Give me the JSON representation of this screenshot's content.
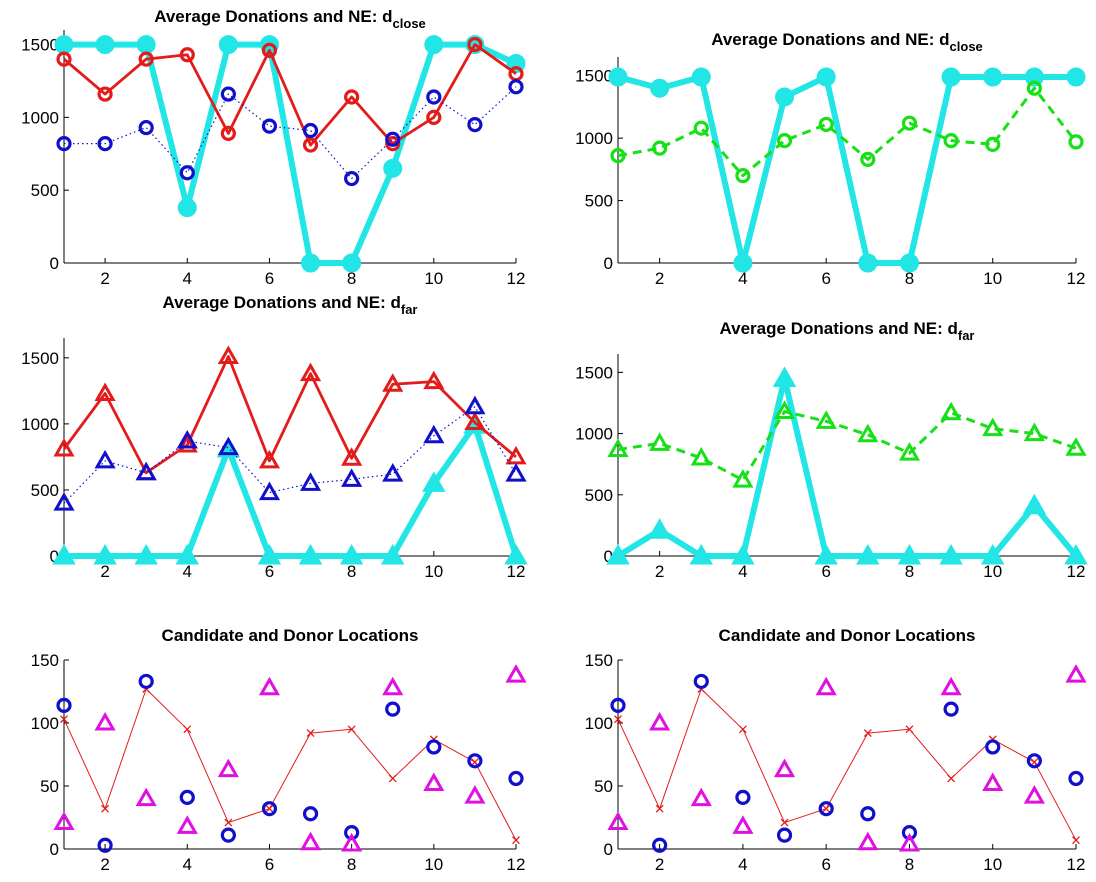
{
  "colors": {
    "cyan": "#22e5e5",
    "red": "#e41b1b",
    "blue": "#1010cc",
    "green": "#16e016",
    "magenta": "#e010e0"
  },
  "chart_data": [
    {
      "type": "line",
      "title": "Average Donations and NE: d",
      "title_subscript": "close",
      "x": [
        1,
        2,
        3,
        4,
        5,
        6,
        7,
        8,
        9,
        10,
        11,
        12
      ],
      "xticks": [
        2,
        4,
        6,
        8,
        10,
        12
      ],
      "yticks": [
        0,
        500,
        1000,
        1500
      ],
      "xlim": [
        1,
        12
      ],
      "ylim": [
        0,
        1600
      ],
      "series": [
        {
          "values": [
            1500,
            1500,
            1500,
            380,
            1500,
            1500,
            0,
            0,
            650,
            1500,
            1500,
            1370
          ],
          "color": "cyan",
          "marker": "o",
          "line": "solid-thick",
          "filled": true
        },
        {
          "values": [
            1400,
            1160,
            1400,
            1430,
            890,
            1460,
            810,
            1140,
            820,
            1000,
            1500,
            1300
          ],
          "color": "red",
          "marker": "o",
          "line": "solid"
        },
        {
          "values": [
            820,
            820,
            930,
            620,
            1160,
            940,
            910,
            580,
            850,
            1140,
            950,
            1210
          ],
          "color": "blue",
          "marker": "o",
          "line": "dotted"
        }
      ]
    },
    {
      "type": "line",
      "title": "Average Donations and NE: d",
      "title_subscript": "close",
      "x": [
        1,
        2,
        3,
        4,
        5,
        6,
        7,
        8,
        9,
        10,
        11,
        12
      ],
      "xticks": [
        2,
        4,
        6,
        8,
        10,
        12
      ],
      "yticks": [
        0,
        500,
        1000,
        1500
      ],
      "xlim": [
        1,
        12
      ],
      "ylim": [
        0,
        1650
      ],
      "series": [
        {
          "values": [
            1490,
            1400,
            1490,
            0,
            1330,
            1490,
            0,
            0,
            1490,
            1490,
            1490,
            1490
          ],
          "color": "cyan",
          "marker": "o",
          "line": "solid-thick",
          "filled": true
        },
        {
          "values": [
            860,
            920,
            1080,
            700,
            980,
            1110,
            830,
            1120,
            980,
            950,
            1400,
            970
          ],
          "color": "green",
          "marker": "o",
          "line": "dashed"
        }
      ]
    },
    {
      "type": "line",
      "title": "Average Donations and NE: d",
      "title_subscript": "far",
      "x": [
        1,
        2,
        3,
        4,
        5,
        6,
        7,
        8,
        9,
        10,
        11,
        12
      ],
      "xticks": [
        2,
        4,
        6,
        8,
        10,
        12
      ],
      "yticks": [
        0,
        500,
        1000,
        1500
      ],
      "xlim": [
        1,
        12
      ],
      "ylim": [
        0,
        1650
      ],
      "series": [
        {
          "values": [
            0,
            0,
            0,
            0,
            810,
            0,
            0,
            0,
            0,
            550,
            990,
            0
          ],
          "color": "cyan",
          "marker": "^",
          "line": "solid-thick",
          "filled": true
        },
        {
          "values": [
            810,
            1230,
            630,
            840,
            1510,
            720,
            1380,
            740,
            1300,
            1320,
            1010,
            750
          ],
          "color": "red",
          "marker": "^",
          "line": "solid"
        },
        {
          "values": [
            400,
            720,
            630,
            870,
            820,
            480,
            550,
            580,
            620,
            910,
            1130,
            620
          ],
          "color": "blue",
          "marker": "^",
          "line": "dotted"
        }
      ]
    },
    {
      "type": "line",
      "title": "Average Donations and NE: d",
      "title_subscript": "far",
      "x": [
        1,
        2,
        3,
        4,
        5,
        6,
        7,
        8,
        9,
        10,
        11,
        12
      ],
      "xticks": [
        2,
        4,
        6,
        8,
        10,
        12
      ],
      "yticks": [
        0,
        500,
        1000,
        1500
      ],
      "xlim": [
        1,
        12
      ],
      "ylim": [
        0,
        1650
      ],
      "series": [
        {
          "values": [
            0,
            210,
            0,
            0,
            1450,
            0,
            0,
            0,
            0,
            0,
            410,
            0
          ],
          "color": "cyan",
          "marker": "^",
          "line": "solid-thick",
          "filled": true
        },
        {
          "values": [
            870,
            920,
            800,
            620,
            1180,
            1100,
            990,
            840,
            1170,
            1040,
            1000,
            880
          ],
          "color": "green",
          "marker": "^",
          "line": "dashed"
        }
      ]
    },
    {
      "type": "scatter",
      "title": "Candidate and Donor Locations",
      "x": [
        1,
        2,
        3,
        4,
        5,
        6,
        7,
        8,
        9,
        10,
        11,
        12
      ],
      "xticks": [
        2,
        4,
        6,
        8,
        10,
        12
      ],
      "yticks": [
        0,
        50,
        100,
        150
      ],
      "xlim": [
        1,
        12
      ],
      "ylim": [
        0,
        150
      ],
      "series": [
        {
          "values": [
            103,
            32,
            127,
            95,
            21,
            32,
            92,
            95,
            56,
            87,
            69,
            7
          ],
          "color": "red",
          "marker": "x",
          "line": "thin"
        },
        {
          "values": [
            114,
            3,
            133,
            41,
            11,
            32,
            28,
            13,
            111,
            81,
            70,
            56
          ],
          "color": "blue",
          "marker": "o",
          "line": "none"
        },
        {
          "values": [
            21,
            100,
            40,
            18,
            63,
            128,
            5,
            4,
            128,
            52,
            42,
            138
          ],
          "color": "magenta",
          "marker": "^",
          "line": "none"
        }
      ]
    },
    {
      "type": "scatter",
      "title": "Candidate and Donor Locations",
      "x": [
        1,
        2,
        3,
        4,
        5,
        6,
        7,
        8,
        9,
        10,
        11,
        12
      ],
      "xticks": [
        2,
        4,
        6,
        8,
        10,
        12
      ],
      "yticks": [
        0,
        50,
        100,
        150
      ],
      "xlim": [
        1,
        12
      ],
      "ylim": [
        0,
        150
      ],
      "series": [
        {
          "values": [
            103,
            32,
            127,
            95,
            21,
            32,
            92,
            95,
            56,
            87,
            69,
            7
          ],
          "color": "red",
          "marker": "x",
          "line": "thin"
        },
        {
          "values": [
            114,
            3,
            133,
            41,
            11,
            32,
            28,
            13,
            111,
            81,
            70,
            56
          ],
          "color": "blue",
          "marker": "o",
          "line": "none"
        },
        {
          "values": [
            21,
            100,
            40,
            18,
            63,
            128,
            5,
            4,
            128,
            52,
            42,
            138
          ],
          "color": "magenta",
          "marker": "^",
          "line": "none"
        }
      ]
    }
  ]
}
